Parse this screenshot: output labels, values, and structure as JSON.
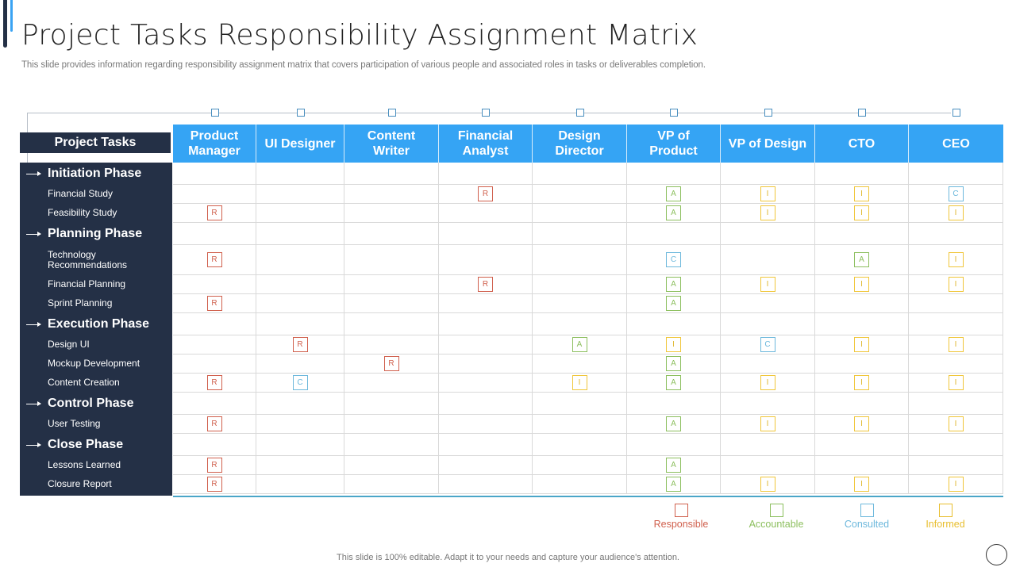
{
  "title": "Project Tasks Responsibility Assignment Matrix",
  "subtitle": "This slide provides information regarding responsibility assignment matrix that covers participation of various people and associated roles in tasks or deliverables completion.",
  "tasks_header": "Project Tasks",
  "columns": [
    "Product Manager",
    "UI Designer",
    "Content Writer",
    "Financial Analyst",
    "Design Director",
    "VP of Product",
    "VP of Design",
    "CTO",
    "CEO"
  ],
  "column_labels_html": [
    [
      "Product",
      "Manager"
    ],
    [
      "UI Designer"
    ],
    [
      "Content",
      "Writer"
    ],
    [
      "Financial",
      "Analyst"
    ],
    [
      "Design",
      "Director"
    ],
    [
      "VP of",
      "Product"
    ],
    [
      "VP of Design"
    ],
    [
      "CTO"
    ],
    [
      "CEO"
    ]
  ],
  "rows": [
    {
      "type": "phase",
      "label": "Initiation Phase",
      "cells": [
        "",
        "",
        "",
        "",
        "",
        "",
        "",
        "",
        ""
      ]
    },
    {
      "type": "task",
      "label": "Financial Study",
      "cells": [
        "",
        "",
        "",
        "R",
        "",
        "A",
        "I",
        "I",
        "C"
      ]
    },
    {
      "type": "task",
      "label": "Feasibility Study",
      "cells": [
        "R",
        "",
        "",
        "",
        "",
        "A",
        "I",
        "I",
        "I"
      ]
    },
    {
      "type": "phase",
      "label": "Planning Phase",
      "cells": [
        "",
        "",
        "",
        "",
        "",
        "",
        "",
        "",
        ""
      ]
    },
    {
      "type": "task",
      "label": "Technology Recommendations",
      "cells": [
        "R",
        "",
        "",
        "",
        "",
        "C",
        "",
        "A",
        "I"
      ]
    },
    {
      "type": "task",
      "label": "Financial Planning",
      "cells": [
        "",
        "",
        "",
        "R",
        "",
        "A",
        "I",
        "I",
        "I"
      ]
    },
    {
      "type": "task",
      "label": "Sprint Planning",
      "cells": [
        "R",
        "",
        "",
        "",
        "",
        "A",
        "",
        "",
        ""
      ]
    },
    {
      "type": "phase",
      "label": "Execution Phase",
      "cells": [
        "",
        "",
        "",
        "",
        "",
        "",
        "",
        "",
        ""
      ]
    },
    {
      "type": "task",
      "label": "Design UI",
      "cells": [
        "",
        "R",
        "",
        "",
        "A",
        "I",
        "C",
        "I",
        "I"
      ]
    },
    {
      "type": "task",
      "label": "Mockup Development",
      "cells": [
        "",
        "",
        "R",
        "",
        "",
        "A",
        "",
        "",
        ""
      ]
    },
    {
      "type": "task",
      "label": "Content Creation",
      "cells": [
        "R",
        "C",
        "",
        "",
        "I",
        "A",
        "I",
        "I",
        "I"
      ]
    },
    {
      "type": "phase",
      "label": "Control Phase",
      "cells": [
        "",
        "",
        "",
        "",
        "",
        "",
        "",
        "",
        ""
      ]
    },
    {
      "type": "task",
      "label": "User Testing",
      "cells": [
        "R",
        "",
        "",
        "",
        "",
        "A",
        "I",
        "I",
        "I"
      ]
    },
    {
      "type": "phase",
      "label": "Close Phase",
      "cells": [
        "",
        "",
        "",
        "",
        "",
        "",
        "",
        "",
        ""
      ]
    },
    {
      "type": "task",
      "label": "Lessons Learned",
      "cells": [
        "R",
        "",
        "",
        "",
        "",
        "A",
        "",
        "",
        ""
      ]
    },
    {
      "type": "task",
      "label": "Closure Report",
      "cells": [
        "R",
        "",
        "",
        "",
        "",
        "A",
        "I",
        "I",
        "I"
      ]
    }
  ],
  "legend": [
    {
      "code": "R",
      "label": "Responsible",
      "color": "#d0604d"
    },
    {
      "code": "A",
      "label": "Accountable",
      "color": "#8cbf5e"
    },
    {
      "code": "C",
      "label": "Consulted",
      "color": "#6db8dc"
    },
    {
      "code": "I",
      "label": "Informed",
      "color": "#e8be2e"
    }
  ],
  "footer": "This slide is 100% editable.  Adapt it to your needs and capture your audience's attention.",
  "colors": {
    "header_blue": "#35a4f4",
    "panel_navy": "#243046",
    "accent_blue": "#3aa3f3"
  }
}
